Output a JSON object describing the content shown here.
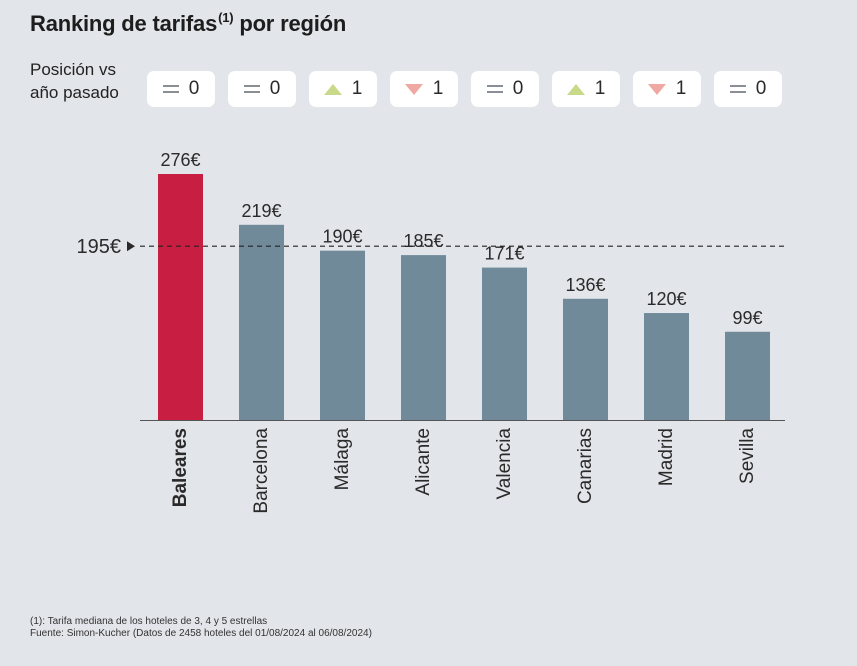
{
  "title": "Ranking de tarifas",
  "title_sup": "(1)",
  "position_label": "Posición vs año pasado",
  "position_badges": [
    {
      "icon": "equal-icon",
      "value": "0"
    },
    {
      "icon": "equal-icon",
      "value": "0"
    },
    {
      "icon": "triangle-up-icon",
      "value": "1"
    },
    {
      "icon": "triangle-down-icon",
      "value": "1"
    },
    {
      "icon": "equal-icon",
      "value": "0"
    },
    {
      "icon": "triangle-up-icon",
      "value": "1"
    },
    {
      "icon": "triangle-down-icon",
      "value": "1"
    },
    {
      "icon": "equal-icon",
      "value": "0"
    }
  ],
  "title_suffix": " por región",
  "chart_data": {
    "type": "bar",
    "categories": [
      "Baleares",
      "Barcelona",
      "Málaga",
      "Alicante",
      "Valencia",
      "Canarias",
      "Madrid",
      "Sevilla"
    ],
    "values": [
      276,
      219,
      190,
      185,
      171,
      136,
      120,
      99
    ],
    "value_labels": [
      "276€",
      "219€",
      "190€",
      "185€",
      "171€",
      "136€",
      "120€",
      "99€"
    ],
    "highlight_category": "Baleares",
    "reference_line": {
      "value": 195,
      "label": "195€"
    },
    "ylim": [
      0,
      276
    ],
    "grid": false,
    "colors": {
      "highlight": "#c81e41",
      "default": "#708a9a",
      "reference_line": "#222222"
    }
  },
  "footnotes": {
    "note": "(1): Tarifa mediana de los hoteles de 3, 4 y 5 estrellas",
    "source": "Fuente: Simon-Kucher (Datos de 2458 hoteles del 01/08/2024 al 06/08/2024)"
  }
}
